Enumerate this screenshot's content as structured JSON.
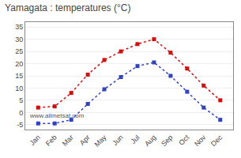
{
  "chart_data": {
    "type": "line",
    "title": "Yamagata : temperatures (°C)",
    "categories": [
      "Jan",
      "Feb",
      "Mar",
      "Apr",
      "May",
      "Jun",
      "Jul",
      "Aug",
      "Sep",
      "Oct",
      "Nov",
      "Dec"
    ],
    "series": [
      {
        "color": "#cc1111",
        "marker": "square",
        "line_style": "dotted",
        "values": [
          2.0,
          2.5,
          8.0,
          15.5,
          21.5,
          25.0,
          28.0,
          30.0,
          24.5,
          18.0,
          11.0,
          5.0
        ]
      },
      {
        "color": "#3344bb",
        "marker": "square",
        "line_style": "dotted",
        "values": [
          -4.5,
          -4.5,
          -3.0,
          3.5,
          9.5,
          14.5,
          19.0,
          20.5,
          15.0,
          8.5,
          2.0,
          -3.0
        ]
      }
    ],
    "ylim": [
      -7,
      37
    ],
    "yticks": [
      -5,
      0,
      5,
      10,
      15,
      20,
      25,
      30,
      35
    ],
    "grid": true,
    "annotations": [
      "www.allmetsat.com"
    ]
  }
}
